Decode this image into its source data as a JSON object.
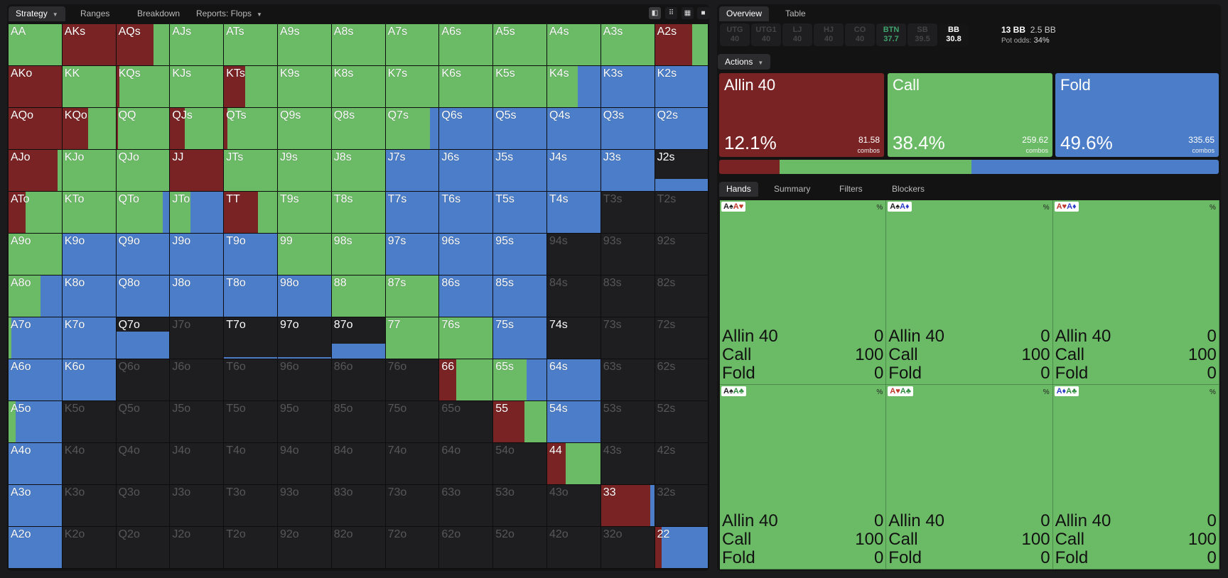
{
  "colors": {
    "allin": "#7a2324",
    "call": "#6bbb66",
    "fold": "#4b7dc8",
    "empty": "#1e1e20"
  },
  "left_tabs": [
    {
      "label": "Strategy",
      "caret": true,
      "active": true
    },
    {
      "label": "Ranges"
    },
    {
      "label": "Breakdown"
    },
    {
      "label": "Reports: Flops",
      "caret": true
    }
  ],
  "view_buttons": [
    {
      "icon": "contrast-icon",
      "glyph": "◧",
      "active": true
    },
    {
      "icon": "compact-grid-icon",
      "glyph": "⠿"
    },
    {
      "icon": "grid-icon",
      "glyph": "▦"
    },
    {
      "icon": "square-icon",
      "glyph": "■"
    }
  ],
  "right_tabs": [
    {
      "label": "Overview",
      "active": true
    },
    {
      "label": "Table"
    }
  ],
  "positions": [
    {
      "name": "UTG",
      "stack": "40"
    },
    {
      "name": "UTG1",
      "stack": "40"
    },
    {
      "name": "LJ",
      "stack": "40"
    },
    {
      "name": "HJ",
      "stack": "40"
    },
    {
      "name": "CO",
      "stack": "40"
    },
    {
      "name": "BTN",
      "stack": "37.7",
      "style": "btn"
    },
    {
      "name": "SB",
      "stack": "39.5"
    },
    {
      "name": "BB",
      "stack": "30.8",
      "style": "bb"
    }
  ],
  "pot": {
    "bb": "13 BB",
    "blinds": "2.5 BB",
    "odds_label": "Pot odds:",
    "odds": "34%"
  },
  "actions_label": "Actions",
  "actions": [
    {
      "name": "Allin 40",
      "pct": "12.1%",
      "combos": "81.58",
      "combos_label": "combos",
      "color": "#7a2324",
      "freq": 12.1
    },
    {
      "name": "Call",
      "pct": "38.4%",
      "combos": "259.62",
      "combos_label": "combos",
      "color": "#6bbb66",
      "freq": 38.4
    },
    {
      "name": "Fold",
      "pct": "49.6%",
      "combos": "335.65",
      "combos_label": "combos",
      "color": "#4b7dc8",
      "freq": 49.6
    }
  ],
  "hands_tabs": [
    {
      "label": "Hands",
      "active": true
    },
    {
      "label": "Summary"
    },
    {
      "label": "Filters"
    },
    {
      "label": "Blockers"
    }
  ],
  "combos": [
    {
      "cards": [
        [
          "A",
          "♠",
          "#222"
        ],
        [
          "A",
          "♥",
          "#c0392b"
        ]
      ],
      "pct": "%",
      "rows": [
        [
          "Allin 40",
          "0"
        ],
        [
          "Call",
          "100"
        ],
        [
          "Fold",
          "0"
        ]
      ]
    },
    {
      "cards": [
        [
          "A",
          "♠",
          "#222"
        ],
        [
          "A",
          "♦",
          "#2c3ec4"
        ]
      ],
      "pct": "%",
      "rows": [
        [
          "Allin 40",
          "0"
        ],
        [
          "Call",
          "100"
        ],
        [
          "Fold",
          "0"
        ]
      ]
    },
    {
      "cards": [
        [
          "A",
          "♥",
          "#c0392b"
        ],
        [
          "A",
          "♦",
          "#2c3ec4"
        ]
      ],
      "pct": "%",
      "rows": [
        [
          "Allin 40",
          "0"
        ],
        [
          "Call",
          "100"
        ],
        [
          "Fold",
          "0"
        ]
      ]
    },
    {
      "cards": [
        [
          "A",
          "♠",
          "#222"
        ],
        [
          "A",
          "♣",
          "#2e8b3e"
        ]
      ],
      "pct": "%",
      "rows": [
        [
          "Allin 40",
          "0"
        ],
        [
          "Call",
          "100"
        ],
        [
          "Fold",
          "0"
        ]
      ]
    },
    {
      "cards": [
        [
          "A",
          "♥",
          "#c0392b"
        ],
        [
          "A",
          "♣",
          "#2e8b3e"
        ]
      ],
      "pct": "%",
      "rows": [
        [
          "Allin 40",
          "0"
        ],
        [
          "Call",
          "100"
        ],
        [
          "Fold",
          "0"
        ]
      ]
    },
    {
      "cards": [
        [
          "A",
          "♦",
          "#2c3ec4"
        ],
        [
          "A",
          "♣",
          "#2e8b3e"
        ]
      ],
      "pct": "%",
      "rows": [
        [
          "Allin 40",
          "0"
        ],
        [
          "Call",
          "100"
        ],
        [
          "Fold",
          "0"
        ]
      ]
    }
  ],
  "matrix": [
    [
      [
        "AA",
        [
          0,
          1,
          0
        ]
      ],
      [
        "AKs",
        [
          1,
          0,
          0
        ]
      ],
      [
        "AQs",
        [
          0.7,
          0.3,
          0
        ]
      ],
      [
        "AJs",
        [
          0,
          1,
          0
        ]
      ],
      [
        "ATs",
        [
          0,
          1,
          0
        ]
      ],
      [
        "A9s",
        [
          0,
          1,
          0
        ]
      ],
      [
        "A8s",
        [
          0,
          1,
          0
        ]
      ],
      [
        "A7s",
        [
          0,
          1,
          0
        ]
      ],
      [
        "A6s",
        [
          0,
          1,
          0
        ]
      ],
      [
        "A5s",
        [
          0,
          1,
          0
        ]
      ],
      [
        "A4s",
        [
          0,
          1,
          0
        ]
      ],
      [
        "A3s",
        [
          0,
          1,
          0
        ]
      ],
      [
        "A2s",
        [
          0.7,
          0.3,
          0
        ]
      ]
    ],
    [
      [
        "AKo",
        [
          1,
          0,
          0
        ]
      ],
      [
        "KK",
        [
          0,
          1,
          0
        ]
      ],
      [
        "KQs",
        [
          0.06,
          0.94,
          0
        ]
      ],
      [
        "KJs",
        [
          0,
          1,
          0
        ]
      ],
      [
        "KTs",
        [
          0.4,
          0.6,
          0
        ]
      ],
      [
        "K9s",
        [
          0,
          1,
          0
        ]
      ],
      [
        "K8s",
        [
          0,
          1,
          0
        ]
      ],
      [
        "K7s",
        [
          0,
          1,
          0
        ]
      ],
      [
        "K6s",
        [
          0,
          1,
          0
        ]
      ],
      [
        "K5s",
        [
          0,
          1,
          0
        ]
      ],
      [
        "K4s",
        [
          0,
          0.58,
          0.42
        ]
      ],
      [
        "K3s",
        [
          0,
          0,
          1
        ]
      ],
      [
        "K2s",
        [
          0,
          0,
          1
        ]
      ]
    ],
    [
      [
        "AQo",
        [
          1,
          0,
          0
        ]
      ],
      [
        "KQo",
        [
          0.48,
          0.52,
          0
        ]
      ],
      [
        "QQ",
        [
          0.03,
          0.97,
          0
        ]
      ],
      [
        "QJs",
        [
          0.28,
          0.72,
          0
        ]
      ],
      [
        "QTs",
        [
          0.06,
          0.94,
          0
        ]
      ],
      [
        "Q9s",
        [
          0,
          1,
          0
        ]
      ],
      [
        "Q8s",
        [
          0,
          1,
          0
        ]
      ],
      [
        "Q7s",
        [
          0,
          0.83,
          0.17
        ]
      ],
      [
        "Q6s",
        [
          0,
          0,
          1
        ]
      ],
      [
        "Q5s",
        [
          0,
          0,
          1
        ]
      ],
      [
        "Q4s",
        [
          0,
          0,
          1
        ]
      ],
      [
        "Q3s",
        [
          0,
          0,
          1
        ]
      ],
      [
        "Q2s",
        [
          0,
          0,
          1
        ]
      ]
    ],
    [
      [
        "AJo",
        [
          0.92,
          0.08,
          0
        ]
      ],
      [
        "KJo",
        [
          0,
          1,
          0
        ]
      ],
      [
        "QJo",
        [
          0,
          1,
          0
        ]
      ],
      [
        "JJ",
        [
          1,
          0,
          0
        ]
      ],
      [
        "JTs",
        [
          0,
          1,
          0
        ]
      ],
      [
        "J9s",
        [
          0,
          1,
          0
        ]
      ],
      [
        "J8s",
        [
          0,
          1,
          0
        ]
      ],
      [
        "J7s",
        [
          0,
          0,
          1
        ]
      ],
      [
        "J6s",
        [
          0,
          0,
          1
        ]
      ],
      [
        "J5s",
        [
          0,
          0,
          1
        ]
      ],
      [
        "J4s",
        [
          0,
          0,
          1
        ]
      ],
      [
        "J3s",
        [
          0,
          0,
          1
        ]
      ],
      [
        "J2s",
        [
          0,
          0,
          0.28,
          "bottom"
        ]
      ]
    ],
    [
      [
        "ATo",
        [
          0.32,
          0.68,
          0
        ]
      ],
      [
        "KTo",
        [
          0,
          1,
          0
        ]
      ],
      [
        "QTo",
        [
          0,
          0.87,
          0.13
        ]
      ],
      [
        "JTo",
        [
          0,
          0.38,
          0.62
        ]
      ],
      [
        "TT",
        [
          0.64,
          0.36,
          0
        ]
      ],
      [
        "T9s",
        [
          0,
          1,
          0
        ]
      ],
      [
        "T8s",
        [
          0,
          1,
          0
        ]
      ],
      [
        "T7s",
        [
          0,
          0,
          1
        ]
      ],
      [
        "T6s",
        [
          0,
          0,
          1
        ]
      ],
      [
        "T5s",
        [
          0,
          0,
          1
        ]
      ],
      [
        "T4s",
        [
          0,
          0,
          1
        ]
      ],
      [
        "T3s",
        null
      ],
      [
        "T2s",
        null
      ]
    ],
    [
      [
        "A9o",
        [
          0,
          1,
          0
        ]
      ],
      [
        "K9o",
        [
          0,
          0,
          1
        ]
      ],
      [
        "Q9o",
        [
          0,
          0,
          1
        ]
      ],
      [
        "J9o",
        [
          0,
          0,
          1
        ]
      ],
      [
        "T9o",
        [
          0,
          0,
          1
        ]
      ],
      [
        "99",
        [
          0,
          1,
          0
        ]
      ],
      [
        "98s",
        [
          0,
          1,
          0
        ]
      ],
      [
        "97s",
        [
          0,
          0,
          1
        ]
      ],
      [
        "96s",
        [
          0,
          0,
          1
        ]
      ],
      [
        "95s",
        [
          0,
          0,
          1
        ]
      ],
      [
        "94s",
        null
      ],
      [
        "93s",
        null
      ],
      [
        "92s",
        null
      ]
    ],
    [
      [
        "A8o",
        [
          0,
          0.6,
          0.4
        ]
      ],
      [
        "K8o",
        [
          0,
          0,
          1
        ]
      ],
      [
        "Q8o",
        [
          0,
          0,
          1
        ]
      ],
      [
        "J8o",
        [
          0,
          0,
          1
        ]
      ],
      [
        "T8o",
        [
          0,
          0,
          1
        ]
      ],
      [
        "98o",
        [
          0,
          0,
          1
        ]
      ],
      [
        "88",
        [
          0,
          1,
          0
        ]
      ],
      [
        "87s",
        [
          0,
          1,
          0
        ]
      ],
      [
        "86s",
        [
          0,
          0,
          1
        ]
      ],
      [
        "85s",
        [
          0,
          0,
          1
        ]
      ],
      [
        "84s",
        null
      ],
      [
        "83s",
        null
      ],
      [
        "82s",
        null
      ]
    ],
    [
      [
        "A7o",
        [
          0,
          0.06,
          0.94
        ]
      ],
      [
        "K7o",
        [
          0,
          0,
          1
        ]
      ],
      [
        "Q7o",
        [
          0,
          0,
          0.66,
          "bottom"
        ]
      ],
      [
        "J7o",
        null
      ],
      [
        "T7o",
        [
          0,
          0,
          0.05,
          "bottom"
        ]
      ],
      [
        "97o",
        [
          0,
          0,
          0.05,
          "bottom"
        ]
      ],
      [
        "87o",
        [
          0,
          0,
          0.35,
          "bottom"
        ]
      ],
      [
        "77",
        [
          0,
          1,
          0
        ]
      ],
      [
        "76s",
        [
          0,
          1,
          0
        ]
      ],
      [
        "75s",
        [
          0,
          0,
          1
        ]
      ],
      [
        "74s",
        [
          0,
          0,
          0
        ]
      ],
      [
        "73s",
        null
      ],
      [
        "72s",
        null
      ]
    ],
    [
      [
        "A6o",
        [
          0,
          0,
          1
        ]
      ],
      [
        "K6o",
        [
          0,
          0,
          1
        ]
      ],
      [
        "Q6o",
        null
      ],
      [
        "J6o",
        null
      ],
      [
        "T6o",
        null
      ],
      [
        "96o",
        null
      ],
      [
        "86o",
        null
      ],
      [
        "76o",
        null
      ],
      [
        "66",
        [
          0.32,
          0.68,
          0
        ]
      ],
      [
        "65s",
        [
          0,
          0.63,
          0.37
        ]
      ],
      [
        "64s",
        [
          0,
          0,
          1
        ]
      ],
      [
        "63s",
        null
      ],
      [
        "62s",
        null
      ]
    ],
    [
      [
        "A5o",
        [
          0,
          0.14,
          0.86
        ]
      ],
      [
        "K5o",
        null
      ],
      [
        "Q5o",
        null
      ],
      [
        "J5o",
        null
      ],
      [
        "T5o",
        null
      ],
      [
        "95o",
        null
      ],
      [
        "85o",
        null
      ],
      [
        "75o",
        null
      ],
      [
        "65o",
        null
      ],
      [
        "55",
        [
          0.58,
          0.42,
          0
        ]
      ],
      [
        "54s",
        [
          0,
          0,
          1
        ]
      ],
      [
        "53s",
        null
      ],
      [
        "52s",
        null
      ]
    ],
    [
      [
        "A4o",
        [
          0,
          0,
          1
        ]
      ],
      [
        "K4o",
        null
      ],
      [
        "Q4o",
        null
      ],
      [
        "J4o",
        null
      ],
      [
        "T4o",
        null
      ],
      [
        "94o",
        null
      ],
      [
        "84o",
        null
      ],
      [
        "74o",
        null
      ],
      [
        "64o",
        null
      ],
      [
        "54o",
        null
      ],
      [
        "44",
        [
          0.35,
          0.65,
          0
        ]
      ],
      [
        "43s",
        null
      ],
      [
        "42s",
        null
      ]
    ],
    [
      [
        "A3o",
        [
          0,
          0,
          1
        ]
      ],
      [
        "K3o",
        null
      ],
      [
        "Q3o",
        null
      ],
      [
        "J3o",
        null
      ],
      [
        "T3o",
        null
      ],
      [
        "93o",
        null
      ],
      [
        "83o",
        null
      ],
      [
        "73o",
        null
      ],
      [
        "63o",
        null
      ],
      [
        "53o",
        null
      ],
      [
        "43o",
        null
      ],
      [
        "33",
        [
          0.92,
          0,
          0.08
        ]
      ],
      [
        "32s",
        null
      ]
    ],
    [
      [
        "A2o",
        [
          0,
          0,
          1
        ]
      ],
      [
        "K2o",
        null
      ],
      [
        "Q2o",
        null
      ],
      [
        "J2o",
        null
      ],
      [
        "T2o",
        null
      ],
      [
        "92o",
        null
      ],
      [
        "82o",
        null
      ],
      [
        "72o",
        null
      ],
      [
        "62o",
        null
      ],
      [
        "52o",
        null
      ],
      [
        "42o",
        null
      ],
      [
        "32o",
        null
      ],
      [
        "22",
        [
          0.12,
          0,
          0.88
        ]
      ]
    ]
  ]
}
